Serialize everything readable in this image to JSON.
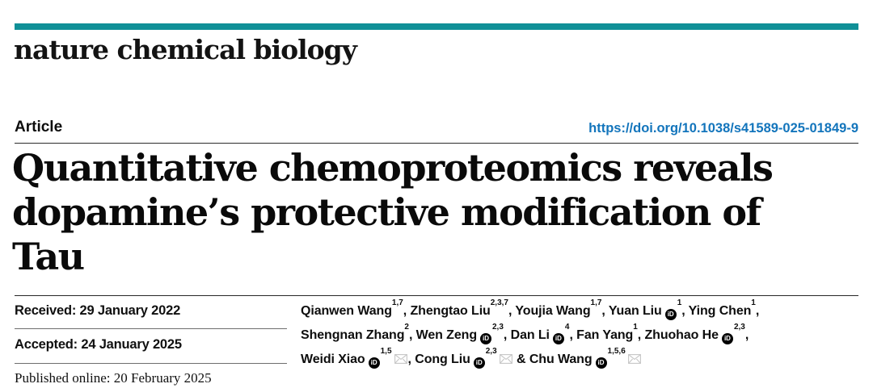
{
  "masthead": {
    "journal_name": "nature chemical biology",
    "accent_color": "#109097"
  },
  "header": {
    "article_label": "Article",
    "doi": "https://doi.org/10.1038/s41589-025-01849-9",
    "doi_color": "#1375bc"
  },
  "title": {
    "line1": "Quantitative chemoproteomics reveals",
    "line2": "dopamine’s protective modification of Tau"
  },
  "dates": {
    "received": "Received: 29 January 2022",
    "accepted": "Accepted: 24 January 2025",
    "published": "Published online: 20 February 2025"
  },
  "authors": {
    "orcid_icon_label": "iD",
    "ampersand": "&",
    "list": [
      {
        "name": "Qianwen Wang",
        "sup": "1,7",
        "orcid": false,
        "email": false,
        "break_after": false
      },
      {
        "name": "Zhengtao Liu",
        "sup": "2,3,7",
        "orcid": false,
        "email": false,
        "break_after": false
      },
      {
        "name": "Youjia Wang",
        "sup": "1,7",
        "orcid": false,
        "email": false,
        "break_after": false
      },
      {
        "name": "Yuan Liu",
        "sup": "1",
        "orcid": true,
        "email": false,
        "break_after": false
      },
      {
        "name": "Ying Chen",
        "sup": "1",
        "orcid": false,
        "email": false,
        "break_after": true
      },
      {
        "name": "Shengnan Zhang",
        "sup": "2",
        "orcid": false,
        "email": false,
        "break_after": false
      },
      {
        "name": "Wen Zeng",
        "sup": "2,3",
        "orcid": true,
        "email": false,
        "break_after": false
      },
      {
        "name": "Dan Li",
        "sup": "4",
        "orcid": true,
        "email": false,
        "break_after": false
      },
      {
        "name": "Fan Yang",
        "sup": "1",
        "orcid": false,
        "email": false,
        "break_after": false
      },
      {
        "name": "Zhuohao He",
        "sup": "2,3",
        "orcid": true,
        "email": false,
        "break_after": true
      },
      {
        "name": "Weidi Xiao",
        "sup": "1,5",
        "orcid": true,
        "email": true,
        "break_after": false
      },
      {
        "name": "Cong Liu",
        "sup": "2,3",
        "orcid": true,
        "email": true,
        "break_after": false
      },
      {
        "name": "Chu Wang",
        "sup": "1,5,6",
        "orcid": true,
        "email": true,
        "break_after": false
      }
    ]
  }
}
